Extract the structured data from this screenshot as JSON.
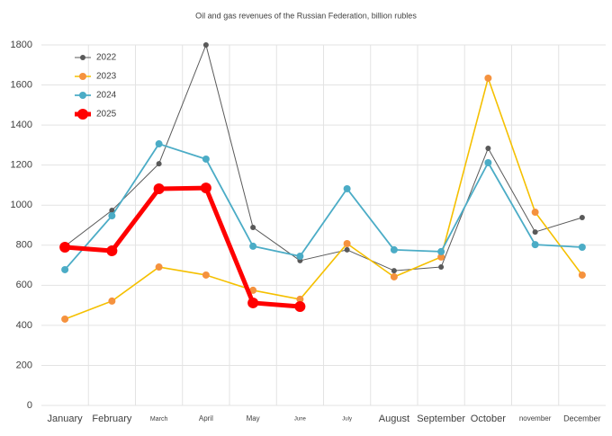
{
  "chart_data": {
    "type": "line",
    "title": "Oil and gas revenues of the Russian Federation, billion rubles",
    "categories": [
      "January",
      "February",
      "March",
      "April",
      "May",
      "June",
      "July",
      "August",
      "September",
      "October",
      "november",
      "December"
    ],
    "series": [
      {
        "name": "2022",
        "color": "#595959",
        "values": [
          795,
          974,
          1207,
          1800,
          889,
          723,
          777,
          673,
          691,
          1284,
          866,
          938
        ]
      },
      {
        "name": "2023",
        "color": "#f5c000",
        "marker_color": "#f5923e",
        "values": [
          431,
          521,
          691,
          651,
          575,
          530,
          808,
          642,
          741,
          1634,
          965,
          651
        ]
      },
      {
        "name": "2024",
        "color": "#4bacc6",
        "values": [
          678,
          947,
          1306,
          1230,
          795,
          745,
          1082,
          777,
          768,
          1212,
          803,
          790
        ]
      },
      {
        "name": "2025",
        "color": "#ff0000",
        "values": [
          790,
          772,
          1082,
          1086,
          512,
          494,
          null,
          null,
          null,
          null,
          null,
          null
        ]
      }
    ],
    "ylim": [
      0,
      1800
    ],
    "yticks": [
      0,
      200,
      400,
      600,
      800,
      1000,
      1200,
      1400,
      1600,
      1800
    ],
    "grid": true,
    "legend": "top-left"
  }
}
